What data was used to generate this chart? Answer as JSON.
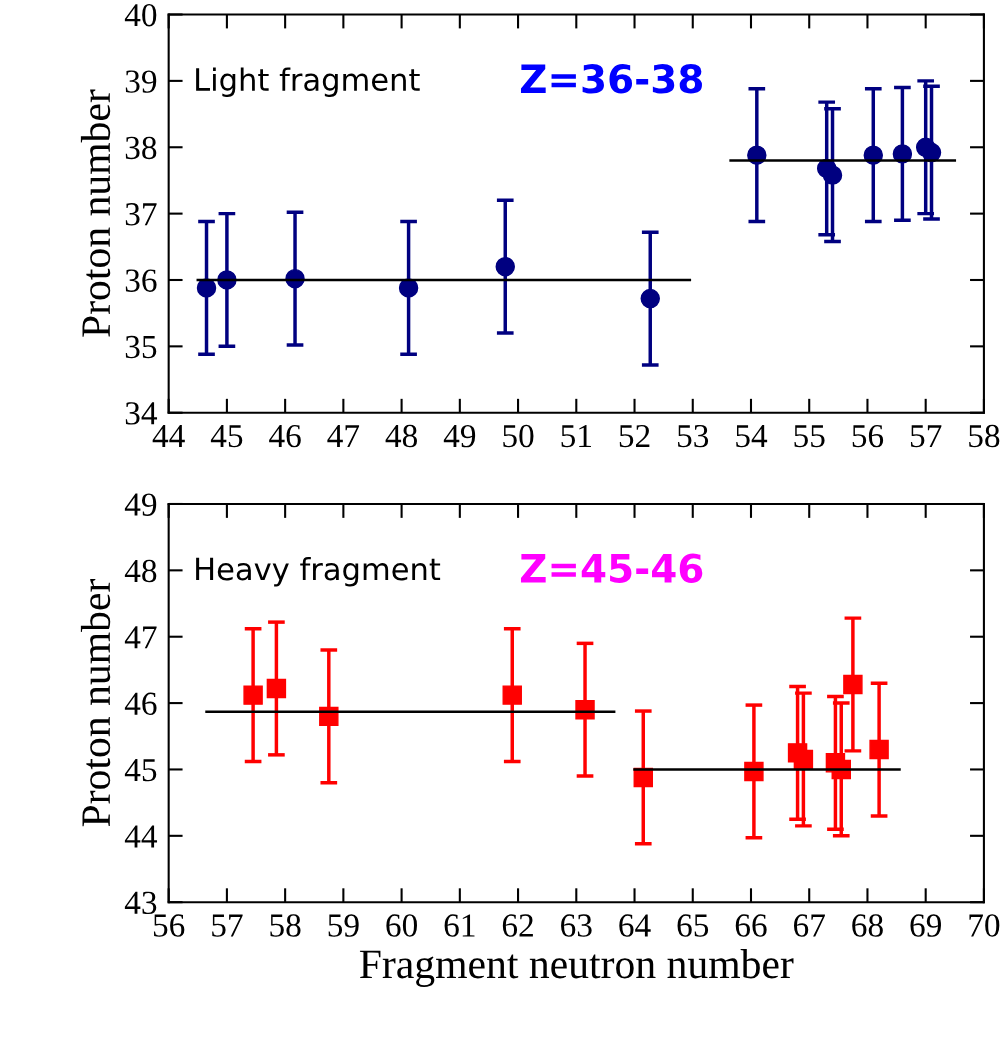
{
  "chart_data": [
    {
      "type": "scatter",
      "ylabel": "Proton number",
      "annotations": [
        "Light fragment",
        "Z=36-38"
      ],
      "marker": "circle",
      "grid": false,
      "legend": false,
      "xlim": [
        44,
        58
      ],
      "xticks": [
        44,
        45,
        46,
        47,
        48,
        49,
        50,
        51,
        52,
        53,
        54,
        55,
        56,
        57,
        58
      ],
      "ylim": [
        34,
        40
      ],
      "yticks": [
        34,
        35,
        36,
        37,
        38,
        39,
        40
      ],
      "series": [
        {
          "color": "#000080",
          "x": [
            44.65,
            45.0,
            46.17,
            48.12,
            49.78,
            52.27,
            54.1,
            55.3,
            55.4,
            56.1,
            56.6,
            57.0,
            57.1
          ],
          "values": [
            35.88,
            36.0,
            36.02,
            35.88,
            36.2,
            35.72,
            37.88,
            37.68,
            37.58,
            37.88,
            37.9,
            38.0,
            37.92
          ],
          "errors": [
            1,
            1,
            1,
            1,
            1,
            1,
            1,
            1,
            1,
            1,
            1,
            1,
            1
          ]
        },
        {
          "type": "line",
          "color": "#000000",
          "marker": "none",
          "x": [
            44.5,
            52.95
          ],
          "values": [
            36.0,
            36.0
          ]
        },
        {
          "type": "line",
          "color": "#000000",
          "marker": "none",
          "x": [
            53.65,
            57.5
          ],
          "values": [
            37.8,
            37.8
          ]
        }
      ]
    },
    {
      "type": "scatter",
      "xlabel": "Fragment neutron number",
      "ylabel": "Proton number",
      "annotations": [
        "Heavy fragment",
        "Z=45-46"
      ],
      "marker": "square",
      "grid": false,
      "legend": false,
      "xlim": [
        56,
        70
      ],
      "xticks": [
        56,
        57,
        58,
        59,
        60,
        61,
        62,
        63,
        64,
        65,
        66,
        67,
        68,
        69,
        70
      ],
      "ylim": [
        43,
        49
      ],
      "yticks": [
        43,
        44,
        45,
        46,
        47,
        48,
        49
      ],
      "series": [
        {
          "color": "#ff0000",
          "x": [
            57.45,
            57.85,
            58.75,
            61.9,
            63.15,
            64.15,
            66.05,
            66.8,
            66.9,
            67.45,
            67.55,
            67.75,
            68.2
          ],
          "values": [
            46.12,
            46.22,
            45.8,
            46.12,
            45.9,
            44.88,
            44.97,
            45.25,
            45.15,
            45.1,
            45.0,
            46.28,
            45.3
          ],
          "errors": [
            1,
            1,
            1,
            1,
            1,
            1,
            1,
            1,
            1,
            1,
            1,
            1,
            1
          ]
        },
        {
          "type": "line",
          "color": "#000000",
          "marker": "none",
          "x": [
            56.65,
            63.65
          ],
          "values": [
            45.87,
            45.87
          ]
        },
        {
          "type": "line",
          "color": "#000000",
          "marker": "none",
          "x": [
            64.0,
            68.55
          ],
          "values": [
            45.0,
            45.0
          ]
        }
      ]
    }
  ]
}
